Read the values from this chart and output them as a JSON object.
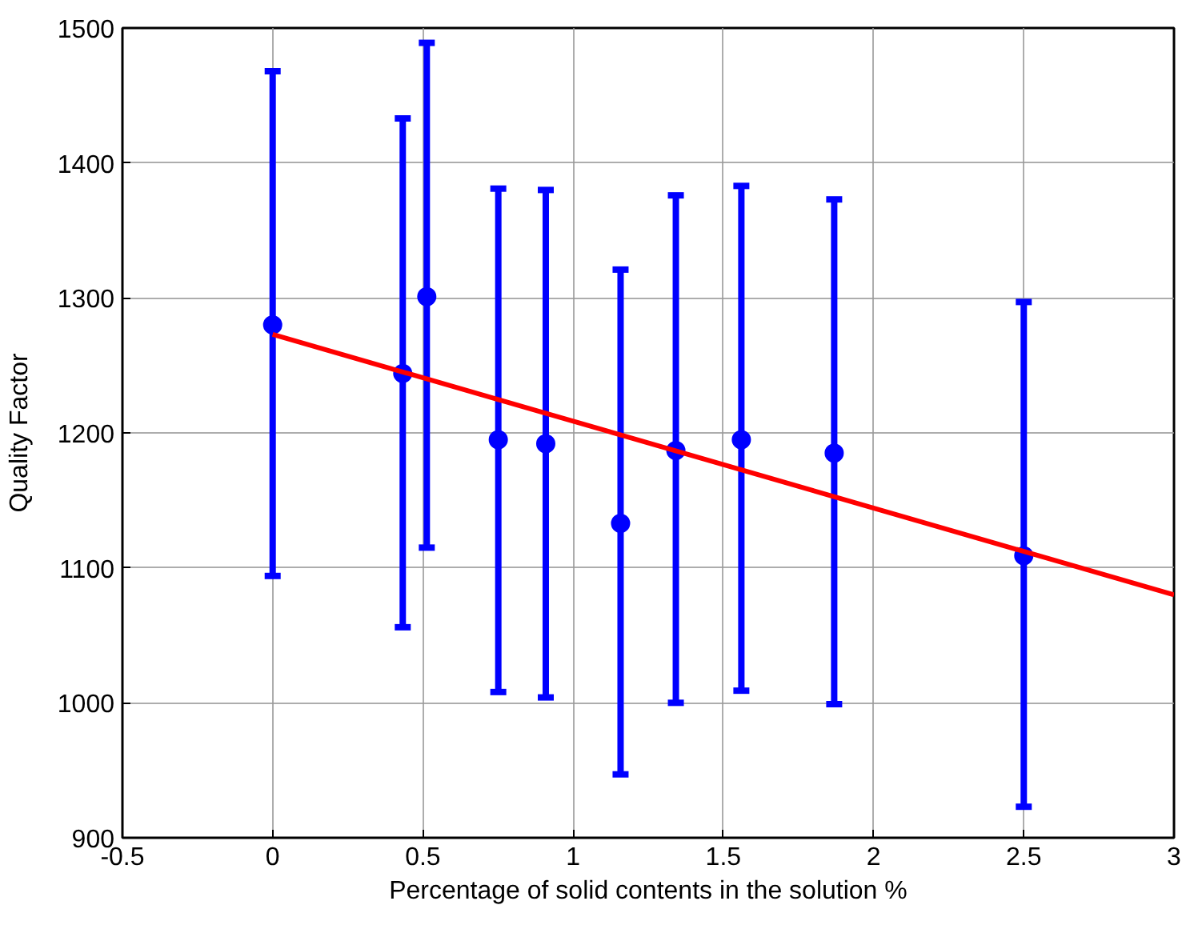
{
  "chart_data": {
    "type": "scatter",
    "xlabel": "Percentage of solid contents in the solution %",
    "ylabel": "Quality Factor",
    "xlim": [
      -0.5,
      3
    ],
    "xticks": [
      -0.5,
      0,
      0.5,
      1,
      1.5,
      2,
      2.5,
      3
    ],
    "ylim": [
      900,
      1500
    ],
    "yticks": [
      900,
      1000,
      1100,
      1200,
      1300,
      1400,
      1500
    ],
    "grid": true,
    "series": [
      {
        "color": "#0000ff",
        "marker": "circle",
        "x": [
          0,
          0.433,
          0.513,
          0.751,
          0.909,
          1.158,
          1.342,
          1.56,
          1.869,
          2.5
        ],
        "values": [
          1280,
          1244,
          1301,
          1195,
          1192,
          1133,
          1187,
          1195,
          1185,
          1109
        ],
        "errors": [
          [
            1094,
            1468
          ],
          [
            1056,
            1433
          ],
          [
            1115,
            1489
          ],
          [
            1008,
            1381
          ],
          [
            1004,
            1380
          ],
          [
            947,
            1321
          ],
          [
            1000,
            1376
          ],
          [
            1009,
            1383
          ],
          [
            999,
            1373
          ],
          [
            923,
            1297
          ]
        ]
      },
      {
        "type": "line",
        "color": "#ff0000",
        "x": [
          0,
          3
        ],
        "values": [
          1273,
          1080
        ]
      }
    ]
  }
}
